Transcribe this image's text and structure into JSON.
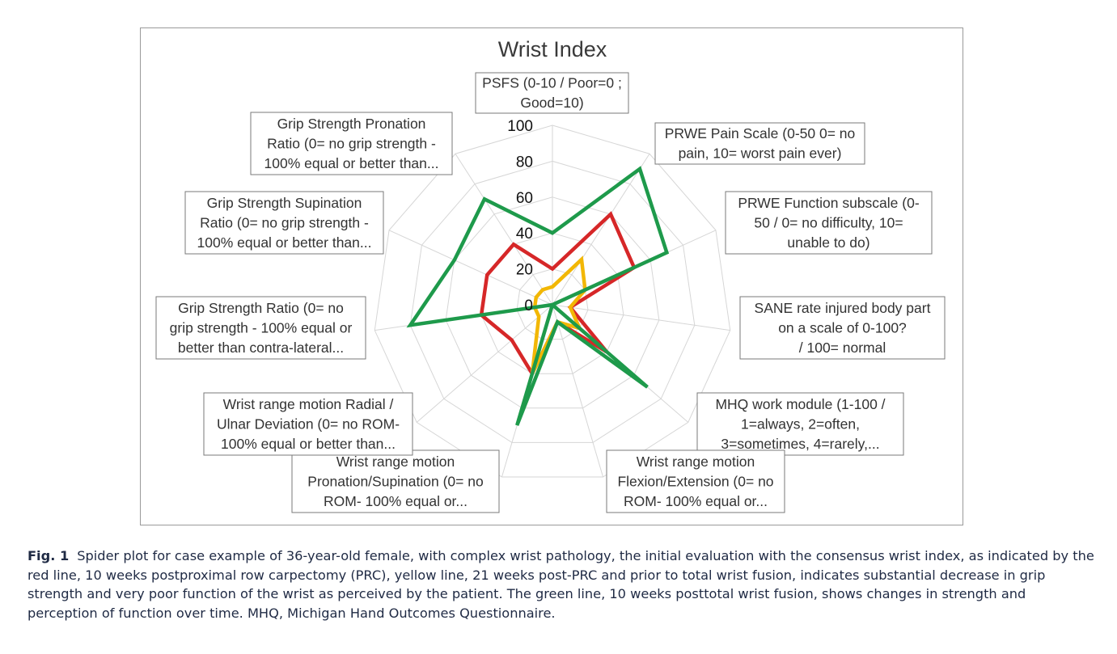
{
  "chart_data": {
    "type": "radar",
    "title": "Wrist Index",
    "rlim": [
      0,
      100
    ],
    "ticks": [
      "0",
      "20",
      "40",
      "60",
      "80",
      "100"
    ],
    "tick_values": [
      0,
      20,
      40,
      60,
      80,
      100
    ],
    "grid": true,
    "legend": "none",
    "axes": [
      {
        "label_lines": [
          "PSFS (0-10 / Poor=0 ;",
          "Good=10)"
        ]
      },
      {
        "label_lines": [
          "PRWE Pain Scale (0-50 0= no",
          "pain, 10= worst pain ever)"
        ]
      },
      {
        "label_lines": [
          "PRWE Function subscale (0-",
          "50 / 0= no difficulty, 10=",
          "unable to do)"
        ]
      },
      {
        "label_lines": [
          "SANE  rate injured body part",
          "on a scale of 0-100?",
          "/ 100= normal"
        ]
      },
      {
        "label_lines": [
          "MHQ work module (1-100 /",
          "1=always, 2=often,",
          "3=sometimes, 4=rarely,..."
        ]
      },
      {
        "label_lines": [
          "Wrist range motion",
          "Flexion/Extension (0= no",
          "ROM- 100% equal or..."
        ]
      },
      {
        "label_lines": [
          "Wrist range motion",
          "Pronation/Supination  (0= no",
          "ROM- 100% equal or..."
        ]
      },
      {
        "label_lines": [
          "Wrist range motion Radial /",
          "Ulnar Deviation (0= no ROM-",
          "100% equal or better than..."
        ]
      },
      {
        "label_lines": [
          "Grip Strength Ratio  (0= no",
          "grip strength - 100% equal or",
          "better than  contra-lateral..."
        ]
      },
      {
        "label_lines": [
          "Grip Strength  Supination",
          "Ratio (0= no  grip strength -",
          "100% equal or better than..."
        ]
      },
      {
        "label_lines": [
          "Grip Strength  Pronation",
          "Ratio  (0= no  grip strength -",
          "100% equal or better than..."
        ]
      }
    ],
    "series": [
      {
        "color": "#d62728",
        "values": [
          20,
          60,
          50,
          10,
          40,
          10,
          40,
          30,
          40,
          40,
          40
        ]
      },
      {
        "color": "#f2b705",
        "values": [
          10,
          30,
          20,
          10,
          20,
          10,
          40,
          10,
          10,
          10,
          10
        ]
      },
      {
        "color": "#1e9a4b",
        "values": [
          40,
          90,
          70,
          0,
          70,
          10,
          70,
          0,
          80,
          60,
          70
        ]
      }
    ]
  },
  "caption": {
    "label": "Fig. 1",
    "text": "Spider plot for case example of 36-year-old female, with complex wrist pathology, the initial evaluation with the consensus wrist index, as indicated by the red line, 10 weeks postproximal row carpectomy (PRC), yellow line, 21 weeks post-PRC and prior to total wrist fusion, indicates substantial decrease in grip strength and very poor function of the wrist as perceived by the patient. The green line, 10 weeks posttotal wrist fusion, shows changes in strength and perception of function over time. MHQ, Michigan Hand Outcomes Questionnaire."
  }
}
